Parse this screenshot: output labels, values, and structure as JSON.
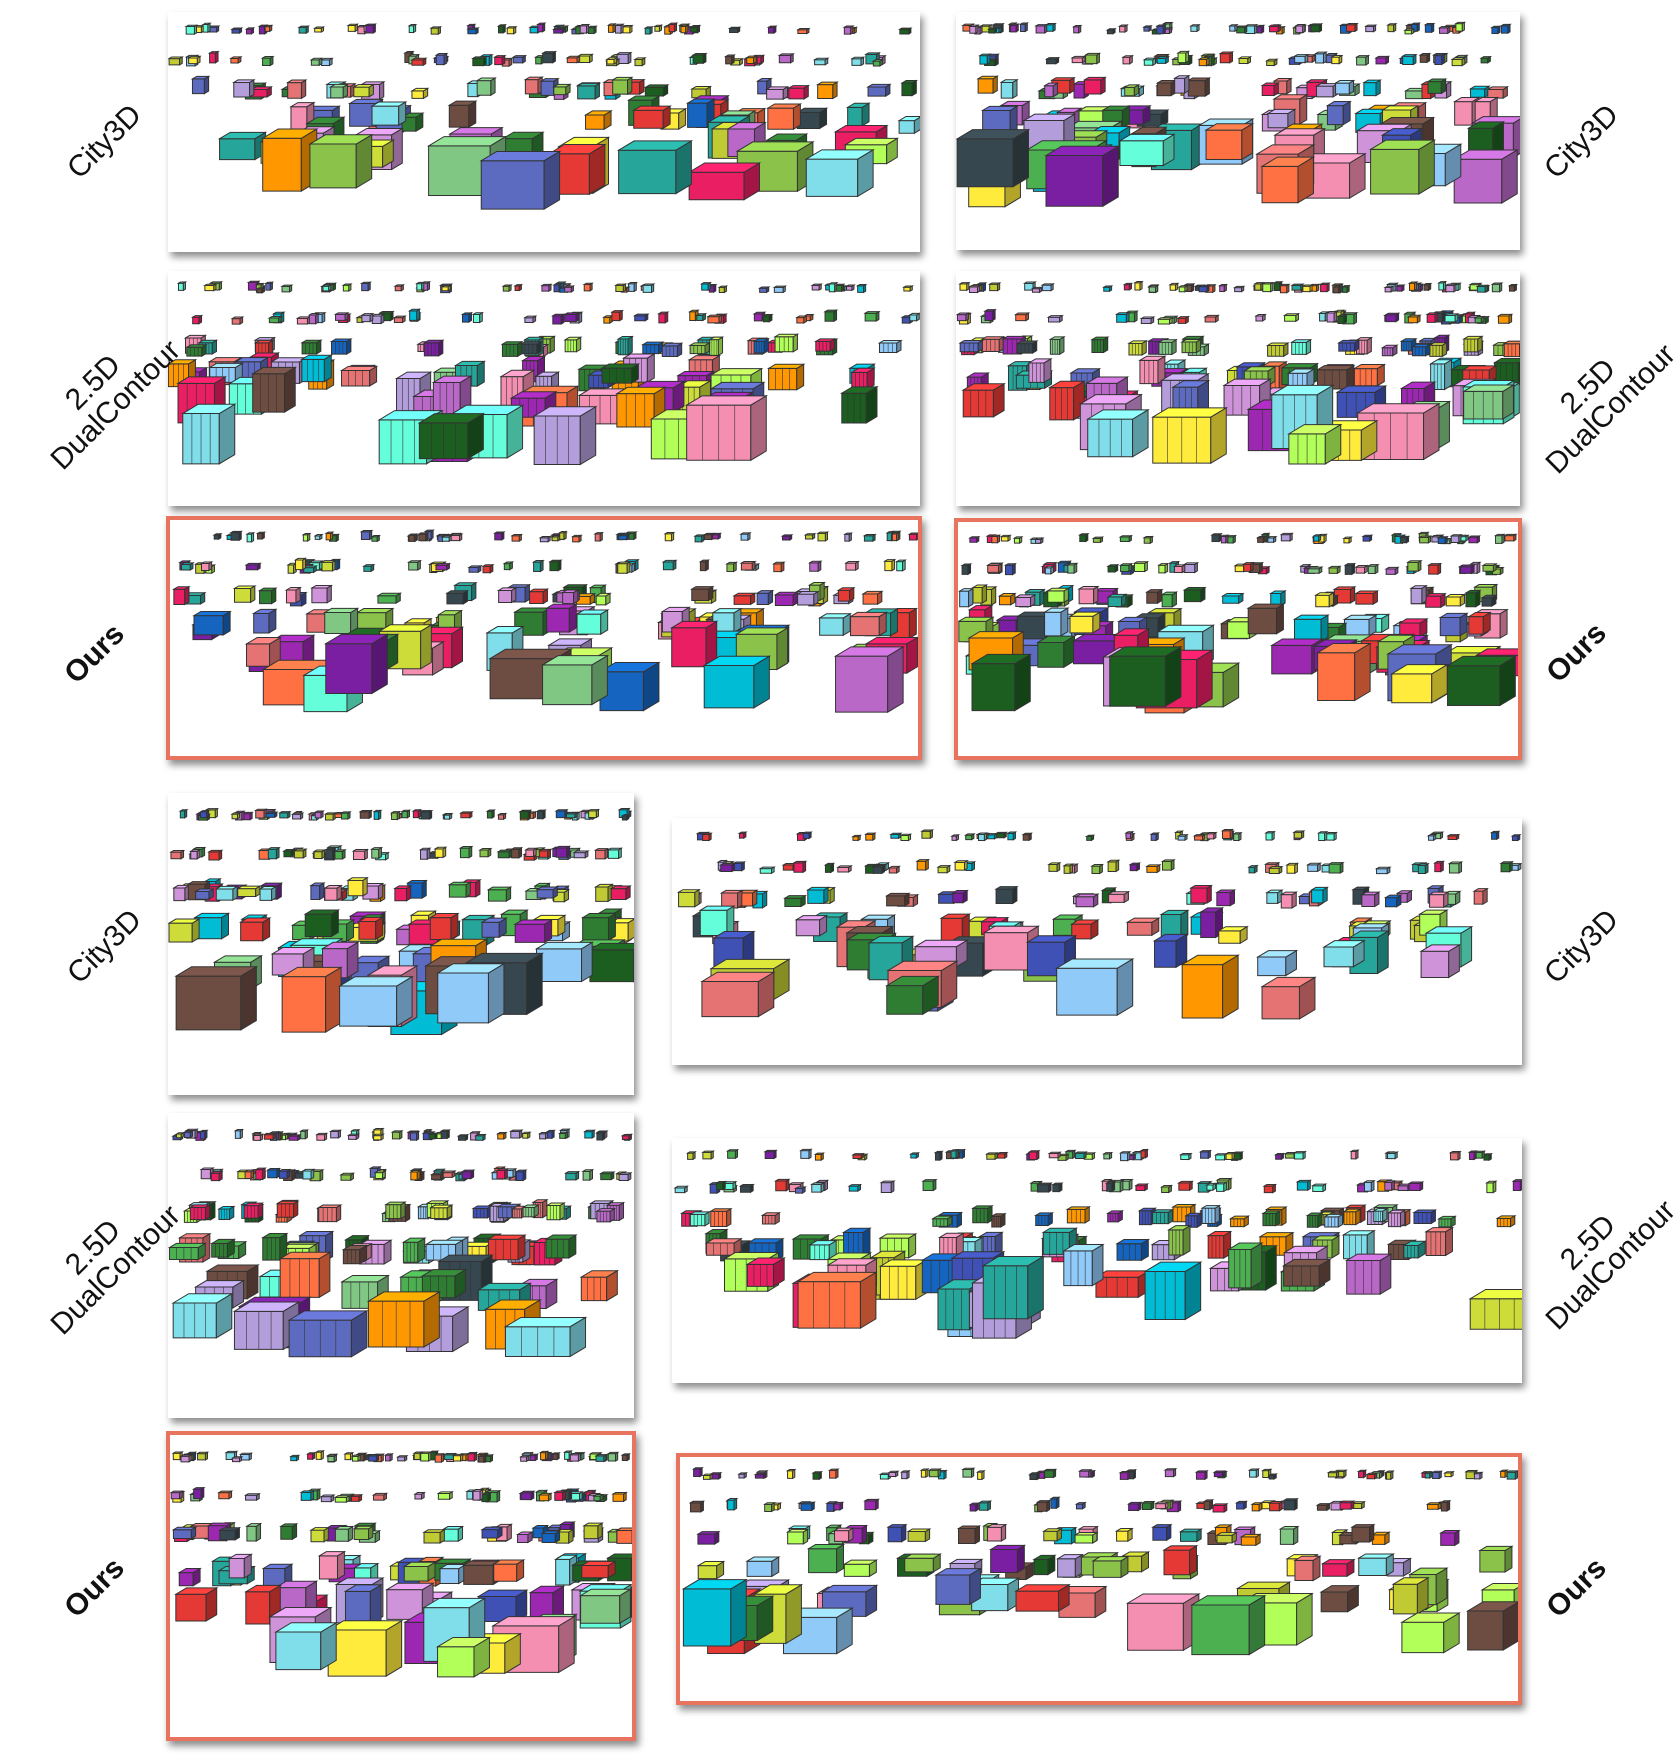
{
  "labels": {
    "city3d": "City3D",
    "dual_line1": "2.5D",
    "dual_line2": "DualContour",
    "ours": "Ours"
  },
  "colors": {
    "ours_border": "#e8745f",
    "palette": [
      "#7b1fa2",
      "#2e7d32",
      "#e91e63",
      "#00bcd4",
      "#ffeb3b",
      "#3f51b5",
      "#8bc34a",
      "#ff9800",
      "#9c27b0",
      "#4caf50",
      "#e53935",
      "#26a69a",
      "#ba68c8",
      "#1565c0",
      "#cddc39",
      "#6d4c41",
      "#90caf9",
      "#f48fb1",
      "#5c6bc0",
      "#1b5e20",
      "#80deea",
      "#b2ff59",
      "#37474f",
      "#c0ca33",
      "#ce93d8",
      "#e57373",
      "#81c784",
      "#64ffda",
      "#b39ddb",
      "#ff7043"
    ]
  }
}
